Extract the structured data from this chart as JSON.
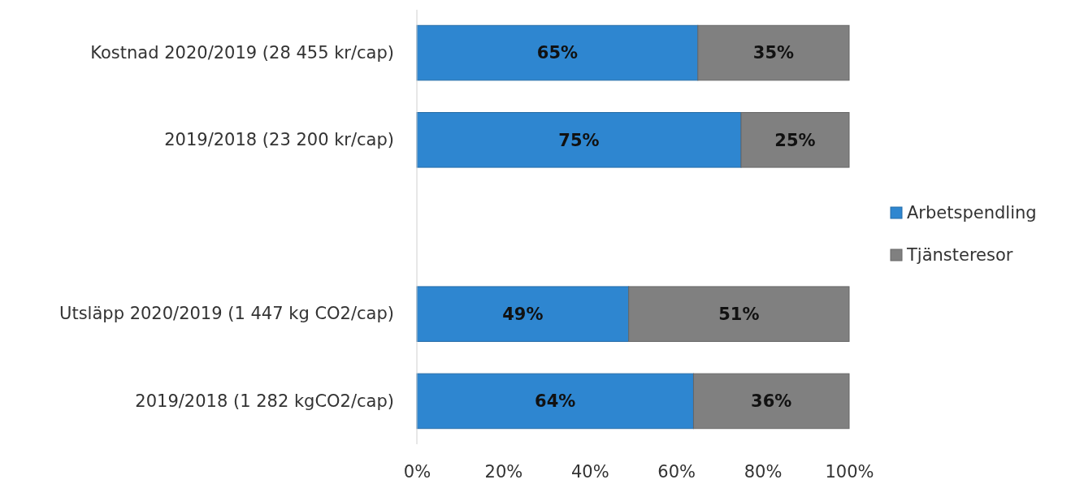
{
  "chart_data": {
    "type": "bar",
    "orientation": "horizontal",
    "stacked": true,
    "legend": "right",
    "grid": false,
    "categories": [
      "Kostnad 2020/2019 (28 455 kr/cap)",
      "2019/2018 (23 200 kr/cap)",
      null,
      "Utsläpp 2020/2019 (1 447 kg CO2/cap)",
      "2019/2018 (1 282 kgCO2/cap)"
    ],
    "series": [
      {
        "name": "Arbetspendling",
        "color": "#2e86d0",
        "values": [
          65,
          75,
          null,
          49,
          64
        ],
        "value_labels": [
          "65%",
          "75%",
          null,
          "49%",
          "64%"
        ]
      },
      {
        "name": "Tjänsteresor",
        "color": "#808080",
        "values": [
          35,
          25,
          null,
          51,
          36
        ],
        "value_labels": [
          "35%",
          "25%",
          null,
          "51%",
          "36%"
        ]
      }
    ],
    "xlim": [
      0,
      100
    ],
    "xticks": [
      {
        "value": 0,
        "label": "0%"
      },
      {
        "value": 20,
        "label": "20%"
      },
      {
        "value": 40,
        "label": "40%"
      },
      {
        "value": 60,
        "label": "60%"
      },
      {
        "value": 80,
        "label": "80%"
      },
      {
        "value": 100,
        "label": "100%"
      }
    ]
  }
}
